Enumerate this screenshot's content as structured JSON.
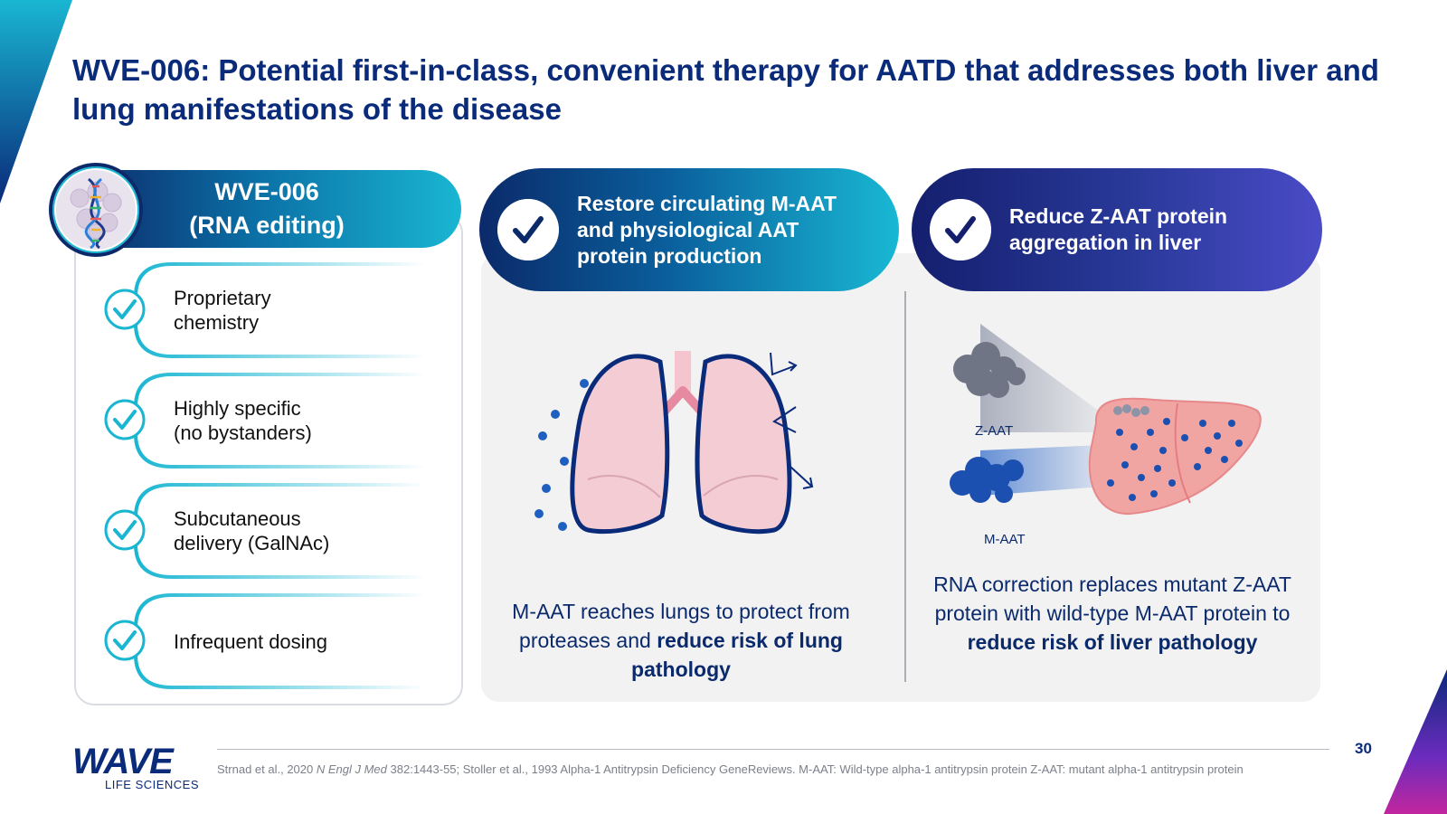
{
  "title": "WVE-006: Potential first-in-class, convenient therapy for AATD that addresses both liver and lung manifestations of the disease",
  "left_panel": {
    "header": "WVE-006\n(RNA editing)",
    "features": [
      {
        "label": "Proprietary\nchemistry"
      },
      {
        "label": "Highly specific\n(no bystanders)"
      },
      {
        "label": "Subcutaneous\ndelivery (GalNAc)"
      },
      {
        "label": "Infrequent dosing"
      }
    ]
  },
  "middle": {
    "pill_text": "Restore circulating M-AAT\nand physiological AAT\nprotein production",
    "caption_plain": "M-AAT reaches lungs to protect from proteases and ",
    "caption_bold": "reduce risk of lung pathology"
  },
  "right": {
    "pill_text": "Reduce Z-AAT protein\naggregation in liver",
    "label_z": "Z-AAT",
    "label_m": "M-AAT",
    "caption_plain": "RNA correction replaces mutant Z-AAT protein with wild-type M-AAT protein to ",
    "caption_bold": "reduce risk of liver pathology"
  },
  "footer": {
    "logo_main": "WAVE",
    "logo_sub": "LIFE SCIENCES",
    "page_number": "30",
    "footnote_pre": "Strnad et al., 2020 ",
    "footnote_journal": "N Engl J Med",
    "footnote_post": " 382:1443-55; Stoller et al., 1993 Alpha-1 Antitrypsin Deficiency GeneReviews. M-AAT: Wild-type alpha-1 antitrypsin protein Z-AAT: mutant alpha-1 antitrypsin protein"
  },
  "colors": {
    "navy": "#0a2a7a",
    "cyan": "#19b6d2",
    "violet": "#4a4bc6",
    "panel_gray": "#f2f2f3"
  }
}
